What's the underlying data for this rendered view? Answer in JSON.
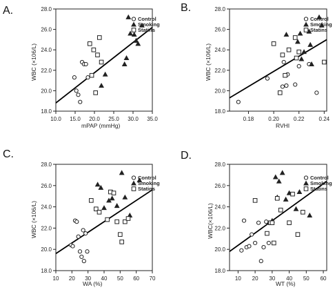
{
  "legend_order": [
    "Control",
    "Smoking",
    "Statins"
  ],
  "chart_data": [
    {
      "panel": "A.",
      "type": "scatter",
      "xlabel": "mPAP (mmHg)",
      "ylabel": "WBC (×106/L)",
      "xlim": [
        10.0,
        35.0
      ],
      "ylim": [
        18.0,
        28.0
      ],
      "xticks": [
        "10.0",
        "15.0",
        "20.0",
        "25.0",
        "30.0",
        "35.0"
      ],
      "yticks": [
        "18.0",
        "20.0",
        "22.0",
        "24.0",
        "26.0",
        "28.0"
      ],
      "legend_position": "top-right",
      "fit_line": {
        "x": [
          10.0,
          35.0
        ],
        "y": [
          18.8,
          26.2
        ]
      },
      "series": [
        {
          "name": "Control",
          "marker": "circle",
          "x": [
            14.8,
            15.3,
            15.8,
            16.3,
            16.8,
            17.3,
            17.8,
            18.3
          ],
          "y": [
            21.3,
            20.0,
            19.6,
            18.9,
            22.8,
            22.6,
            22.6,
            21.3
          ]
        },
        {
          "name": "Smoking",
          "marker": "triangle",
          "x": [
            21.8,
            22.8,
            27.8,
            28.3,
            28.8,
            29.3,
            30.3,
            30.8,
            31.3,
            32.3
          ],
          "y": [
            20.5,
            21.6,
            22.6,
            23.2,
            27.2,
            25.6,
            25.5,
            24.9,
            24.6,
            26.4
          ]
        },
        {
          "name": "Statins",
          "marker": "square",
          "x": [
            18.8,
            19.3,
            19.8,
            20.3,
            20.8,
            21.3,
            21.8
          ],
          "y": [
            24.6,
            21.5,
            24.0,
            19.8,
            23.5,
            25.2,
            22.8
          ]
        }
      ]
    },
    {
      "panel": "B.",
      "type": "scatter",
      "xlabel": "RVHI",
      "ylabel": "WBC (×106/L)",
      "xlim": [
        0.165,
        0.242
      ],
      "ylim": [
        18.0,
        28.0
      ],
      "xticks": [
        "0.18",
        "0.20",
        "0.22",
        "0.24"
      ],
      "yticks": [
        "18.0",
        "20.0",
        "22.0",
        "24.0",
        "26.0",
        "28.0"
      ],
      "legend_position": "top-right",
      "fit_line": {
        "x": [
          0.165,
          0.242
        ],
        "y": [
          19.3,
          25.0
        ]
      },
      "series": [
        {
          "name": "Control",
          "marker": "circle",
          "x": [
            0.172,
            0.195,
            0.205,
            0.207,
            0.208,
            0.21,
            0.211,
            0.217,
            0.22,
            0.228,
            0.234
          ],
          "y": [
            18.9,
            21.2,
            19.8,
            20.4,
            22.8,
            20.5,
            21.6,
            20.6,
            22.4,
            22.6,
            19.8
          ]
        },
        {
          "name": "Smoking",
          "marker": "triangle",
          "x": [
            0.21,
            0.219,
            0.221,
            0.222,
            0.224,
            0.228,
            0.229,
            0.23,
            0.236,
            0.238
          ],
          "y": [
            25.5,
            24.8,
            25.6,
            23.1,
            23.8,
            25.8,
            24.5,
            22.6,
            27.2,
            26.4
          ]
        },
        {
          "name": "Statins",
          "marker": "square",
          "x": [
            0.2,
            0.205,
            0.207,
            0.209,
            0.212,
            0.217,
            0.218,
            0.22,
            0.24
          ],
          "y": [
            24.6,
            19.8,
            23.5,
            21.5,
            24.0,
            25.2,
            23.2,
            23.8,
            22.8
          ]
        }
      ]
    },
    {
      "panel": "C.",
      "type": "scatter",
      "xlabel": "WA (%)",
      "ylabel": "WBC (×106/L)",
      "xlim": [
        10.0,
        70.0
      ],
      "ylim": [
        18.0,
        28.0
      ],
      "xticks": [
        "10",
        "20",
        "30",
        "40",
        "50",
        "60",
        "70"
      ],
      "yticks": [
        "18.0",
        "20.0",
        "22.0",
        "24.0",
        "26.0",
        "28.0"
      ],
      "legend_position": "top-right",
      "fit_line": {
        "x": [
          10.0,
          70.0
        ],
        "y": [
          19.6,
          25.6
        ]
      },
      "series": [
        {
          "name": "Control",
          "marker": "circle",
          "x": [
            19.5,
            20.5,
            22.0,
            23.0,
            24.0,
            25.0,
            26.0,
            27.0,
            27.5,
            28.5,
            29.5
          ],
          "y": [
            20.4,
            20.3,
            22.7,
            22.6,
            21.2,
            19.8,
            19.3,
            21.8,
            18.9,
            21.5,
            19.8
          ]
        },
        {
          "name": "Smoking",
          "marker": "triangle",
          "x": [
            36.0,
            38.0,
            40.0,
            43.0,
            45.0,
            48.0,
            51.0,
            53.0,
            56.0,
            62.0
          ],
          "y": [
            26.1,
            25.8,
            23.9,
            24.6,
            24.8,
            24.1,
            27.2,
            24.9,
            23.2,
            26.5
          ]
        },
        {
          "name": "Statins",
          "marker": "square",
          "x": [
            32.0,
            35.0,
            37.0,
            42.0,
            44.0,
            46.0,
            48.0,
            50.0,
            51.0,
            53.0,
            55.0
          ],
          "y": [
            24.6,
            23.8,
            23.5,
            22.8,
            25.4,
            25.3,
            22.6,
            21.4,
            20.7,
            22.6,
            22.9
          ]
        }
      ]
    },
    {
      "panel": "D.",
      "type": "scatter",
      "xlabel": "WT (%)",
      "ylabel": "WBC(×106/L)",
      "xlim": [
        5.0,
        62.0
      ],
      "ylim": [
        18.0,
        28.0
      ],
      "xticks": [
        "10",
        "20",
        "30",
        "40",
        "50",
        "60"
      ],
      "yticks": [
        "18.0",
        "20.0",
        "22.0",
        "24.0",
        "26.0",
        "28.0"
      ],
      "legend_position": "top-right",
      "fit_line": {
        "x": [
          5.0,
          62.0
        ],
        "y": [
          19.8,
          26.4
        ]
      },
      "series": [
        {
          "name": "Control",
          "marker": "circle",
          "x": [
            12.0,
            13.5,
            15.0,
            16.5,
            18.0,
            20.0,
            22.0,
            23.5,
            25.0,
            26.5,
            28.0
          ],
          "y": [
            19.9,
            22.7,
            20.2,
            20.3,
            21.4,
            20.6,
            22.5,
            18.9,
            20.2,
            22.6,
            20.6
          ]
        },
        {
          "name": "Smoking",
          "marker": "triangle",
          "x": [
            30.0,
            32.0,
            33.0,
            34.0,
            36.0,
            38.0,
            40.0,
            44.0,
            46.0,
            52.0
          ],
          "y": [
            22.7,
            26.8,
            24.9,
            26.4,
            27.2,
            24.7,
            25.3,
            23.8,
            25.4,
            23.2
          ]
        },
        {
          "name": "Statins",
          "marker": "square",
          "x": [
            20.0,
            27.0,
            29.0,
            30.0,
            31.0,
            33.0,
            35.0,
            40.0,
            42.0,
            45.0,
            48.0
          ],
          "y": [
            24.6,
            21.5,
            22.5,
            22.5,
            20.6,
            24.8,
            23.7,
            22.5,
            25.2,
            21.4,
            23.5
          ]
        }
      ]
    }
  ]
}
